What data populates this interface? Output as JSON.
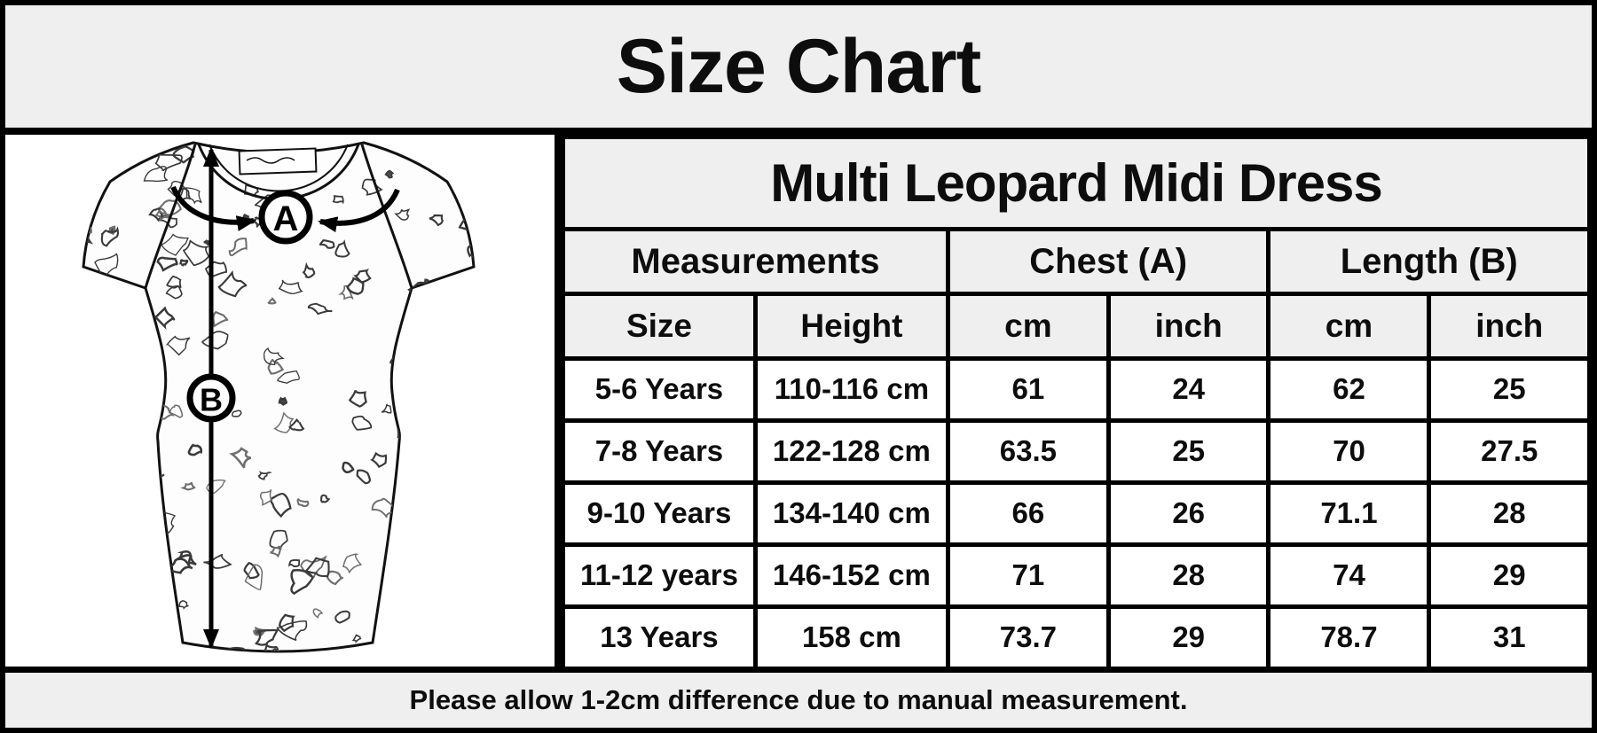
{
  "banner": {
    "title": "Size Chart"
  },
  "table": {
    "title": "Multi Leopard Midi Dress",
    "groups": [
      "Measurements",
      "Chest (A)",
      "Length (B)"
    ],
    "subheaders": [
      "Size",
      "Height",
      "cm",
      "inch",
      "cm",
      "inch"
    ],
    "rows": [
      [
        "5-6 Years",
        "110-116 cm",
        "61",
        "24",
        "62",
        "25"
      ],
      [
        "7-8 Years",
        "122-128 cm",
        "63.5",
        "25",
        "70",
        "27.5"
      ],
      [
        "9-10 Years",
        "134-140 cm",
        "66",
        "26",
        "71.1",
        "28"
      ],
      [
        "11-12 years",
        "146-152 cm",
        "71",
        "28",
        "74",
        "29"
      ],
      [
        "13 Years",
        "158 cm",
        "73.7",
        "29",
        "78.7",
        "31"
      ]
    ]
  },
  "diagram": {
    "marker_a": "A",
    "marker_b": "B"
  },
  "note": {
    "text": "Please allow 1-2cm difference due to manual measurement."
  },
  "colors": {
    "background": "#efefef",
    "panel": "#ffffff",
    "border": "#000000",
    "text": "#0d0d0d"
  },
  "chart_data": {
    "type": "table",
    "title": "Multi Leopard Midi Dress",
    "column_groups": [
      "Measurements",
      "Chest (A)",
      "Length (B)"
    ],
    "columns": [
      "Size",
      "Height",
      "Chest (A) cm",
      "Chest (A) inch",
      "Length (B) cm",
      "Length (B) inch"
    ],
    "rows": [
      [
        "5-6 Years",
        "110-116 cm",
        61,
        24,
        62,
        25
      ],
      [
        "7-8 Years",
        "122-128 cm",
        63.5,
        25,
        70,
        27.5
      ],
      [
        "9-10 Years",
        "134-140 cm",
        66,
        26,
        71.1,
        28
      ],
      [
        "11-12 years",
        "146-152 cm",
        71,
        28,
        74,
        29
      ],
      [
        "13 Years",
        "158 cm",
        73.7,
        29,
        78.7,
        31
      ]
    ],
    "note": "Please allow 1-2cm difference due to manual measurement."
  }
}
